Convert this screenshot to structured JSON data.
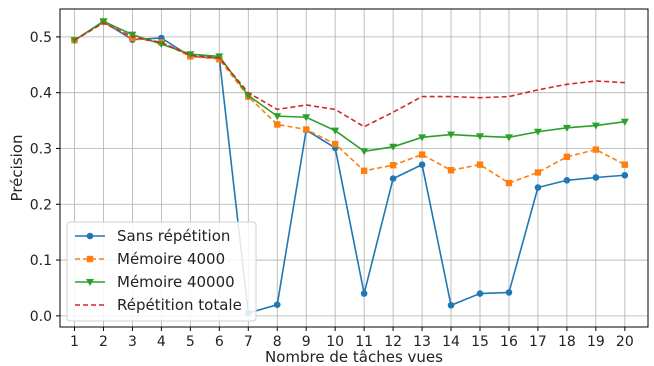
{
  "chart_data": {
    "type": "line",
    "xlabel": "Nombre de tâches vues",
    "ylabel": "Précision",
    "x": [
      1,
      2,
      3,
      4,
      5,
      6,
      7,
      8,
      9,
      10,
      11,
      12,
      13,
      14,
      15,
      16,
      17,
      18,
      19,
      20
    ],
    "xlim": [
      0.5,
      20.8
    ],
    "ylim": [
      -0.02,
      0.55
    ],
    "yticks": [
      "0.0",
      "0.1",
      "0.2",
      "0.3",
      "0.4",
      "0.5"
    ],
    "grid": true,
    "legend_position": "lower-left",
    "series": [
      {
        "name": "Sans répétition",
        "color": "#1f77b4",
        "line_style": "solid",
        "marker": "circle",
        "values": [
          0.494,
          0.527,
          0.495,
          0.498,
          0.465,
          0.462,
          0.005,
          0.02,
          0.333,
          0.301,
          0.04,
          0.246,
          0.271,
          0.019,
          0.04,
          0.042,
          0.23,
          0.243,
          0.248,
          0.252
        ]
      },
      {
        "name": "Mémoire 4000",
        "color": "#ff7f0e",
        "line_style": "dashed",
        "marker": "square",
        "values": [
          0.494,
          0.527,
          0.498,
          0.49,
          0.465,
          0.46,
          0.393,
          0.343,
          0.334,
          0.308,
          0.26,
          0.27,
          0.289,
          0.261,
          0.271,
          0.238,
          0.257,
          0.285,
          0.298,
          0.271
        ]
      },
      {
        "name": "Mémoire 40000",
        "color": "#2ca02c",
        "line_style": "solid",
        "marker": "triangle-down",
        "values": [
          0.494,
          0.528,
          0.504,
          0.487,
          0.469,
          0.465,
          0.395,
          0.358,
          0.356,
          0.332,
          0.295,
          0.303,
          0.32,
          0.325,
          0.322,
          0.32,
          0.33,
          0.337,
          0.341,
          0.348
        ]
      },
      {
        "name": "Répétition totale",
        "color": "#d62728",
        "line_style": "dashed",
        "marker": "none",
        "values": [
          0.494,
          0.525,
          0.5,
          0.49,
          0.467,
          0.462,
          0.4,
          0.37,
          0.378,
          0.37,
          0.339,
          0.365,
          0.393,
          0.393,
          0.391,
          0.393,
          0.405,
          0.415,
          0.421,
          0.418
        ]
      }
    ]
  }
}
